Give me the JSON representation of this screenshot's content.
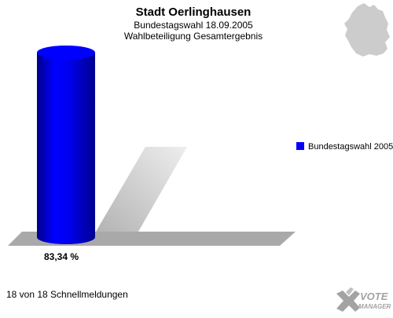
{
  "header": {
    "title": "Stadt Oerlinghausen",
    "subtitle1": "Bundestagswahl 18.09.2005",
    "subtitle2": "Wahlbeteiligung Gesamtergebnis"
  },
  "chart_data": {
    "type": "bar",
    "categories": [
      "Bundestagswahl 2005"
    ],
    "series": [
      {
        "name": "Bundestagswahl 2005",
        "values": [
          83.34
        ],
        "value_labels": [
          "83,34 %"
        ],
        "color": "#0000ff"
      }
    ],
    "ylim": [
      0,
      100
    ],
    "grid": false,
    "legend": "right",
    "three_d": true
  },
  "footer": {
    "status": "18 von 18 Schnellmeldungen"
  },
  "logo": {
    "line1": "VOTE",
    "line2": "MANAGER"
  },
  "map_icon": "germany-map-icon",
  "colors": {
    "bar": "#0000ff",
    "bar_dark": "#000088",
    "floor": "#a9a9a9",
    "map": "#cccccc"
  }
}
